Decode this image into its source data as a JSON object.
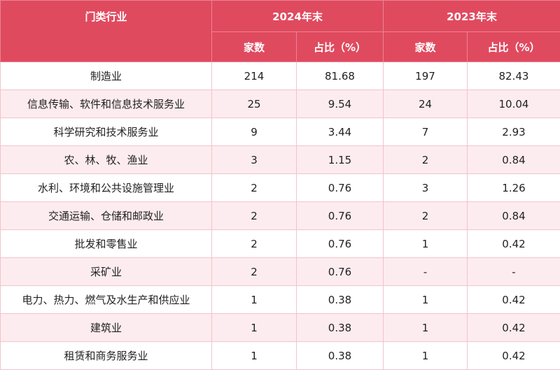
{
  "header": {
    "industry": "门类行业",
    "year_2024": "2024年末",
    "year_2023": "2023年末",
    "count": "家数",
    "share": "占比（%）"
  },
  "rows": [
    {
      "industry": "制造业",
      "c2024": "214",
      "s2024": "81.68",
      "c2023": "197",
      "s2023": "82.43"
    },
    {
      "industry": "信息传输、软件和信息技术服务业",
      "c2024": "25",
      "s2024": "9.54",
      "c2023": "24",
      "s2023": "10.04"
    },
    {
      "industry": "科学研究和技术服务业",
      "c2024": "9",
      "s2024": "3.44",
      "c2023": "7",
      "s2023": "2.93"
    },
    {
      "industry": "农、林、牧、渔业",
      "c2024": "3",
      "s2024": "1.15",
      "c2023": "2",
      "s2023": "0.84"
    },
    {
      "industry": "水利、环境和公共设施管理业",
      "c2024": "2",
      "s2024": "0.76",
      "c2023": "3",
      "s2023": "1.26"
    },
    {
      "industry": "交通运输、仓储和邮政业",
      "c2024": "2",
      "s2024": "0.76",
      "c2023": "2",
      "s2023": "0.84"
    },
    {
      "industry": "批发和零售业",
      "c2024": "2",
      "s2024": "0.76",
      "c2023": "1",
      "s2023": "0.42"
    },
    {
      "industry": "采矿业",
      "c2024": "2",
      "s2024": "0.76",
      "c2023": "-",
      "s2023": "-"
    },
    {
      "industry": "电力、热力、燃气及水生产和供应业",
      "c2024": "1",
      "s2024": "0.38",
      "c2023": "1",
      "s2023": "0.42"
    },
    {
      "industry": "建筑业",
      "c2024": "1",
      "s2024": "0.38",
      "c2023": "1",
      "s2023": "0.42"
    },
    {
      "industry": "租赁和商务服务业",
      "c2024": "1",
      "s2024": "0.38",
      "c2023": "1",
      "s2023": "0.42"
    }
  ]
}
